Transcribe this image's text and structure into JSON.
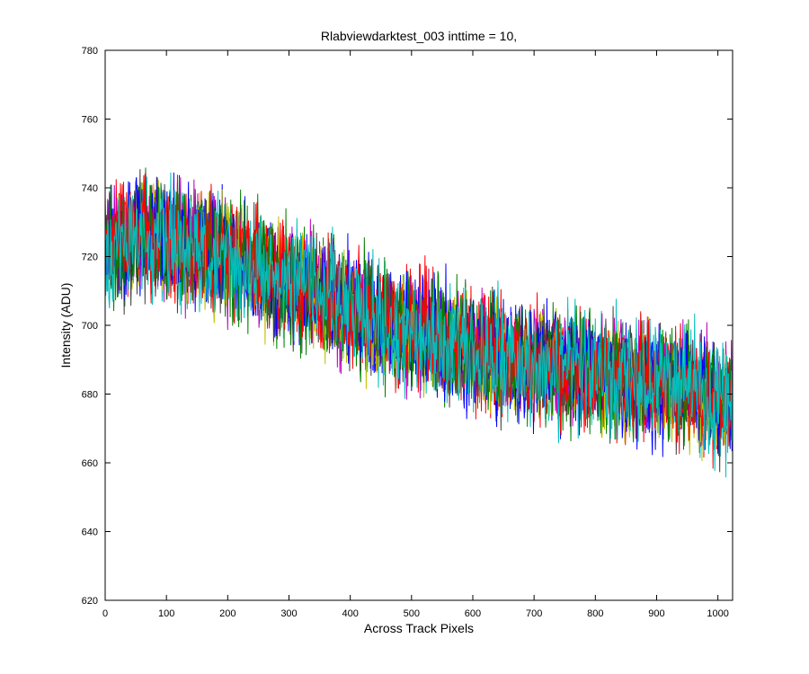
{
  "chart_data": {
    "type": "line",
    "title": "Rlabviewdarktest_003 inttime = 10,",
    "xlabel": "Across Track Pixels",
    "ylabel": "Intensity (ADU)",
    "xlim": [
      0,
      1024
    ],
    "ylim": [
      620,
      780
    ],
    "xticks": [
      0,
      100,
      200,
      300,
      400,
      500,
      600,
      700,
      800,
      900,
      1000
    ],
    "yticks": [
      620,
      640,
      660,
      680,
      700,
      720,
      740,
      760,
      780
    ],
    "grid": false,
    "legend": "none",
    "trend": {
      "x": [
        0,
        50,
        100,
        150,
        200,
        250,
        300,
        350,
        400,
        450,
        500,
        550,
        600,
        650,
        700,
        750,
        800,
        850,
        900,
        950,
        1000,
        1024
      ],
      "y": [
        722,
        727,
        725,
        722,
        720,
        716,
        712,
        709,
        705,
        701,
        698,
        696,
        693,
        691,
        689,
        687,
        686,
        684,
        683,
        682,
        679,
        678
      ]
    },
    "noise_amplitude_adu": 14,
    "series": [
      {
        "color": "#0000ff"
      },
      {
        "color": "#008000"
      },
      {
        "color": "#ff0000"
      },
      {
        "color": "#00bfbf"
      },
      {
        "color": "#bf00bf"
      },
      {
        "color": "#bfbf00"
      },
      {
        "color": "#404040"
      },
      {
        "color": "#0000ff"
      },
      {
        "color": "#008000"
      },
      {
        "color": "#ff0000"
      },
      {
        "color": "#00bfbf"
      }
    ]
  }
}
